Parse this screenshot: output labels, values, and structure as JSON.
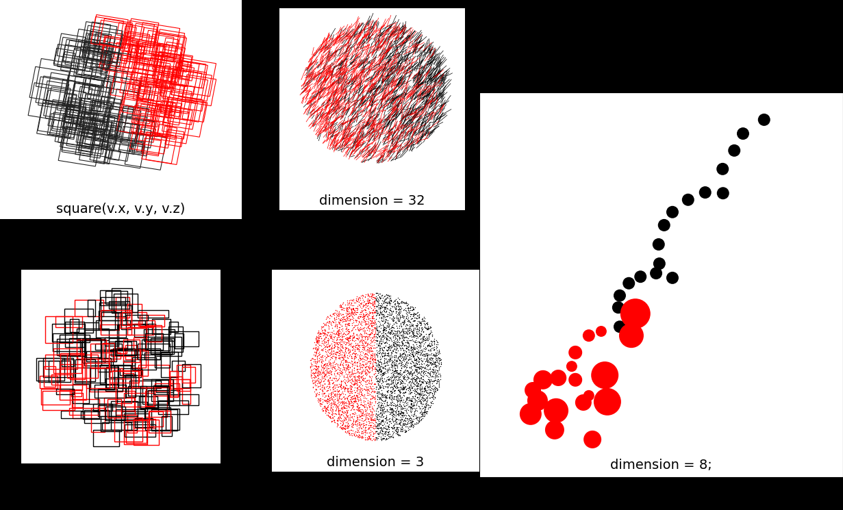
{
  "panels": {
    "top_left": {
      "caption": "square(v.x, v.y, v.z)"
    },
    "top_middle": {
      "caption": "dimension = 32"
    },
    "bottom_middle": {
      "caption": "dimension = 3"
    }
  },
  "chart_data": {
    "type": "scatter",
    "caption": "dimension = 8;",
    "xlim": [
      0,
      100
    ],
    "ylim": [
      0,
      100
    ],
    "tick_labels": false,
    "series": [
      {
        "color": "#000000",
        "x": [
          78.3,
          72.5,
          70.1,
          66.9,
          67.0,
          62.1,
          57.4,
          53.1,
          50.8,
          49.3,
          49.5,
          48.6,
          53.1,
          44.3,
          41.1,
          38.6,
          38.2,
          38.6
        ],
        "y": [
          92.9,
          89.3,
          84.9,
          80.1,
          73.8,
          74.0,
          72.1,
          68.9,
          65.5,
          60.5,
          55.5,
          53.0,
          51.8,
          52.1,
          50.4,
          47.2,
          44.1,
          39.1
        ],
        "sizes": [
          9,
          9,
          9,
          9,
          9,
          9,
          9,
          9,
          9,
          9,
          9,
          9,
          9,
          9,
          9,
          9,
          9,
          9
        ]
      },
      {
        "color": "#ff0000",
        "x": [
          42.9,
          41.8,
          30.1,
          33.5,
          26.4,
          34.5,
          25.4,
          17.5,
          21.7,
          26.4,
          14.7,
          16.0,
          21.1,
          14.1,
          28.6,
          35.2,
          30.1,
          20.7,
          31.1
        ],
        "y": [
          42.5,
          36.8,
          36.8,
          37.9,
          32.4,
          26.5,
          28.8,
          25.3,
          25.8,
          25.3,
          22.6,
          19.9,
          17.3,
          16.4,
          19.4,
          19.6,
          21.2,
          12.3,
          9.8
        ],
        "sizes": [
          22,
          18,
          9,
          8,
          10,
          20,
          8,
          14,
          12,
          10,
          12,
          15,
          18,
          16,
          12,
          20,
          8,
          14,
          13
        ]
      }
    ]
  }
}
